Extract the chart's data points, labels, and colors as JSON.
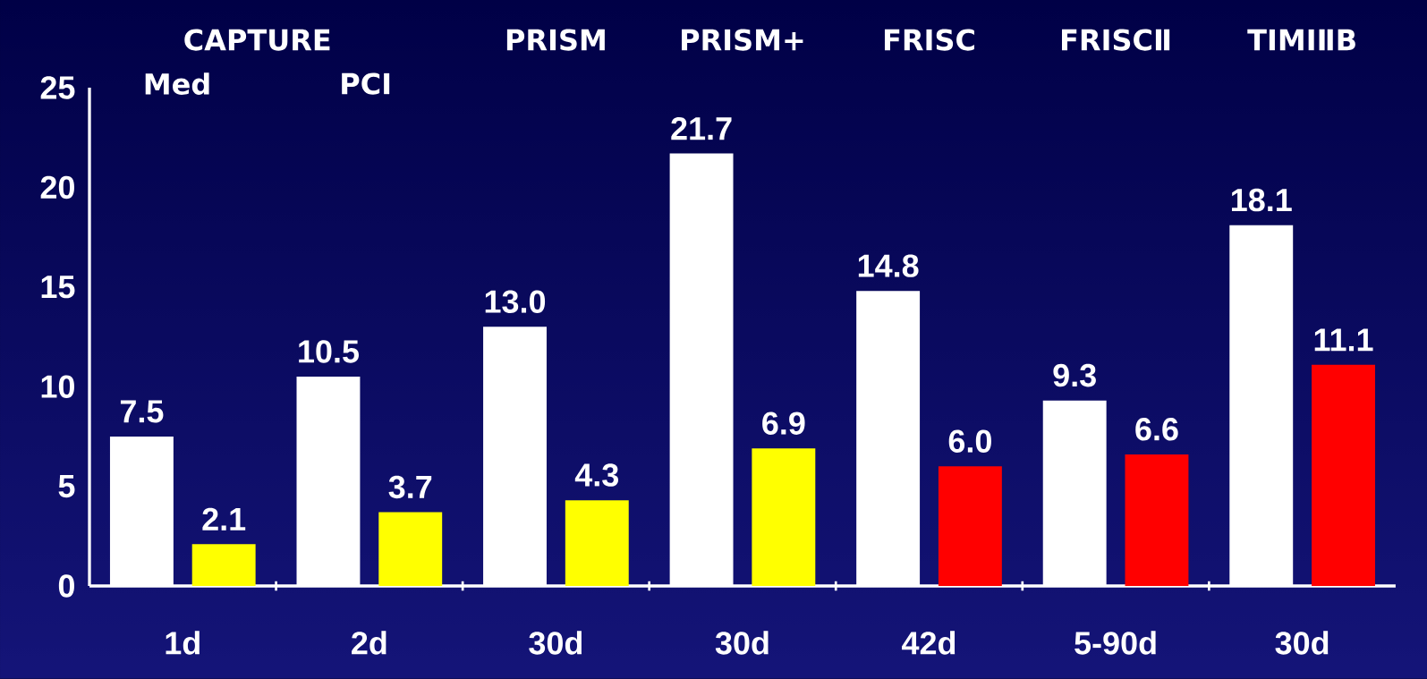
{
  "chart_data": {
    "type": "bar",
    "categories": [
      "1d",
      "2d",
      "30d",
      "30d",
      "42d",
      "5-90d",
      "30d"
    ],
    "series": [
      {
        "color": "#ffffff",
        "values": [
          7.5,
          10.5,
          13.0,
          21.7,
          14.8,
          9.3,
          18.1
        ],
        "value_labels": [
          "7.5",
          "10.5",
          "13.0",
          "21.7",
          "14.8",
          "9.3",
          "18.1"
        ]
      },
      {
        "colors": [
          "#ffff00",
          "#ffff00",
          "#ffff00",
          "#ffff00",
          "#ff0000",
          "#ff0000",
          "#ff0000"
        ],
        "values": [
          2.1,
          3.7,
          4.3,
          6.9,
          6.0,
          6.6,
          11.1
        ],
        "value_labels": [
          "2.1",
          "3.7",
          "4.3",
          "6.9",
          "6.0",
          "6.6",
          "11.1"
        ]
      }
    ],
    "annotations": [
      "CAPTURE",
      "Med",
      "PCI",
      "PRISM",
      "PRISM+",
      "FRISC",
      "FRISCⅡ",
      "TIMIⅡB"
    ],
    "ylim": [
      0,
      25
    ],
    "yticks": [
      0,
      5,
      10,
      15,
      20,
      25
    ],
    "grid": false
  }
}
